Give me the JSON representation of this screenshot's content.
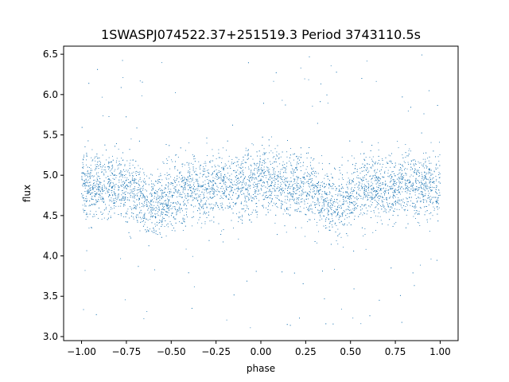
{
  "chart_data": {
    "type": "scatter",
    "title": "1SWASPJ074522.37+251519.3 Period 3743110.5s",
    "xlabel": "phase",
    "ylabel": "flux",
    "xlim": [
      -1.1,
      1.1
    ],
    "ylim": [
      2.95,
      6.6
    ],
    "xticks": [
      -1.0,
      -0.75,
      -0.5,
      -0.25,
      0.0,
      0.25,
      0.5,
      0.75,
      1.0
    ],
    "xtick_labels": [
      "−1.00",
      "−0.75",
      "−0.50",
      "−0.25",
      "0.00",
      "0.25",
      "0.50",
      "0.75",
      "1.00"
    ],
    "yticks": [
      3.0,
      3.5,
      4.0,
      4.5,
      5.0,
      5.5,
      6.0,
      6.5
    ],
    "ytick_labels": [
      "3.0",
      "3.5",
      "4.0",
      "4.5",
      "5.0",
      "5.5",
      "6.0",
      "6.5"
    ],
    "grid": false,
    "marker_color": "#1f77b4",
    "series": [
      {
        "x_range": [
          -1.0,
          1.0
        ],
        "baseline_profile": [
          [
            -1.0,
            4.85
          ],
          [
            -0.8,
            4.88
          ],
          [
            -0.72,
            4.82
          ],
          [
            -0.66,
            4.72
          ],
          [
            -0.6,
            4.62
          ],
          [
            -0.5,
            4.72
          ],
          [
            -0.4,
            4.86
          ],
          [
            -0.3,
            4.8
          ],
          [
            -0.2,
            4.88
          ],
          [
            0.0,
            4.9
          ],
          [
            0.2,
            4.88
          ],
          [
            0.3,
            4.86
          ],
          [
            0.36,
            4.72
          ],
          [
            0.42,
            4.62
          ],
          [
            0.5,
            4.72
          ],
          [
            0.6,
            4.86
          ],
          [
            0.7,
            4.82
          ],
          [
            0.8,
            4.88
          ],
          [
            1.0,
            4.85
          ]
        ],
        "typical_scatter": 0.2,
        "outlier_range": [
          3.1,
          6.5
        ]
      }
    ]
  }
}
